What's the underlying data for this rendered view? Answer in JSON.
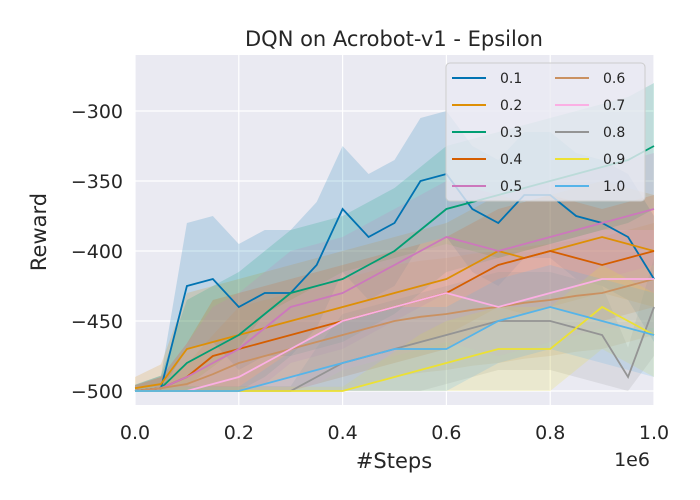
{
  "chart_data": {
    "type": "line",
    "title": "DQN on Acrobot-v1 - Epsilon",
    "xlabel": "#Steps",
    "ylabel": "Reward",
    "x_scale_label": "1e6",
    "xlim": [
      0,
      1.0
    ],
    "ylim": [
      -510,
      -260
    ],
    "xticks": [
      "0.0",
      "0.2",
      "0.4",
      "0.6",
      "0.8",
      "1.0"
    ],
    "xtick_values": [
      0,
      0.2,
      0.4,
      0.6,
      0.8,
      1.0
    ],
    "yticks": [
      "−300",
      "−350",
      "−400",
      "−450",
      "−500"
    ],
    "ytick_values": [
      -300,
      -350,
      -400,
      -450,
      -500
    ],
    "grid": true,
    "legend_position": "top-right",
    "x": [
      0,
      0.05,
      0.1,
      0.15,
      0.2,
      0.25,
      0.3,
      0.35,
      0.4,
      0.45,
      0.5,
      0.55,
      0.6,
      0.65,
      0.7,
      0.75,
      0.8,
      0.85,
      0.9,
      0.95,
      1.0
    ],
    "series": [
      {
        "name": "0.1",
        "color": "#0173b2",
        "band": 45,
        "values": [
          -500,
          -498,
          -425,
          -420,
          -440,
          -430,
          -430,
          -410,
          -370,
          -390,
          -380,
          -350,
          -345,
          -370,
          -380,
          -360,
          -360,
          -375,
          -380,
          -390,
          -420
        ]
      },
      {
        "name": "0.2",
        "color": "#de8f05",
        "band": 40,
        "values": [
          -498,
          -495,
          -470,
          -465,
          -460,
          -455,
          -450,
          -445,
          -440,
          -435,
          -430,
          -425,
          -420,
          -410,
          -400,
          -405,
          -400,
          -395,
          -390,
          -395,
          -400
        ]
      },
      {
        "name": "0.3",
        "color": "#029e73",
        "band": 45,
        "values": [
          -500,
          -498,
          -480,
          -470,
          -460,
          -445,
          -430,
          -425,
          -420,
          -410,
          -400,
          -385,
          -370,
          -365,
          -360,
          -355,
          -350,
          -345,
          -340,
          -335,
          -325
        ]
      },
      {
        "name": "0.4",
        "color": "#d55e00",
        "band": 40,
        "values": [
          -500,
          -498,
          -490,
          -475,
          -470,
          -465,
          -460,
          -455,
          -450,
          -445,
          -440,
          -435,
          -430,
          -420,
          -410,
          -405,
          -400,
          -405,
          -410,
          -405,
          -400
        ]
      },
      {
        "name": "0.5",
        "color": "#cc78bc",
        "band": 40,
        "values": [
          -500,
          -498,
          -490,
          -480,
          -470,
          -455,
          -440,
          -435,
          -430,
          -420,
          -410,
          -400,
          -390,
          -395,
          -400,
          -395,
          -390,
          -385,
          -380,
          -375,
          -370
        ]
      },
      {
        "name": "0.6",
        "color": "#ca9161",
        "band": 40,
        "values": [
          -500,
          -498,
          -495,
          -488,
          -480,
          -475,
          -470,
          -465,
          -460,
          -455,
          -450,
          -447,
          -445,
          -442,
          -440,
          -437,
          -435,
          -432,
          -430,
          -425,
          -420
        ]
      },
      {
        "name": "0.7",
        "color": "#fbafe4",
        "band": 35,
        "values": [
          -500,
          -500,
          -500,
          -495,
          -490,
          -480,
          -470,
          -460,
          -450,
          -445,
          -440,
          -435,
          -430,
          -435,
          -440,
          -435,
          -430,
          -425,
          -420,
          -420,
          -420
        ]
      },
      {
        "name": "0.8",
        "color": "#949494",
        "band": 35,
        "values": [
          -500,
          -500,
          -500,
          -500,
          -500,
          -500,
          -500,
          -490,
          -480,
          -475,
          -470,
          -465,
          -460,
          -455,
          -450,
          -450,
          -450,
          -455,
          -460,
          -490,
          -440
        ]
      },
      {
        "name": "0.9",
        "color": "#ece133",
        "band": 30,
        "values": [
          -500,
          -500,
          -500,
          -500,
          -500,
          -500,
          -500,
          -500,
          -500,
          -495,
          -490,
          -485,
          -480,
          -475,
          -470,
          -470,
          -470,
          -455,
          -440,
          -450,
          -460
        ]
      },
      {
        "name": "1.0",
        "color": "#56b4e9",
        "band": 30,
        "values": [
          -500,
          -500,
          -500,
          -500,
          -500,
          -495,
          -490,
          -485,
          -480,
          -475,
          -470,
          -470,
          -470,
          -460,
          -450,
          -445,
          -440,
          -445,
          -450,
          -455,
          -460
        ]
      }
    ]
  }
}
